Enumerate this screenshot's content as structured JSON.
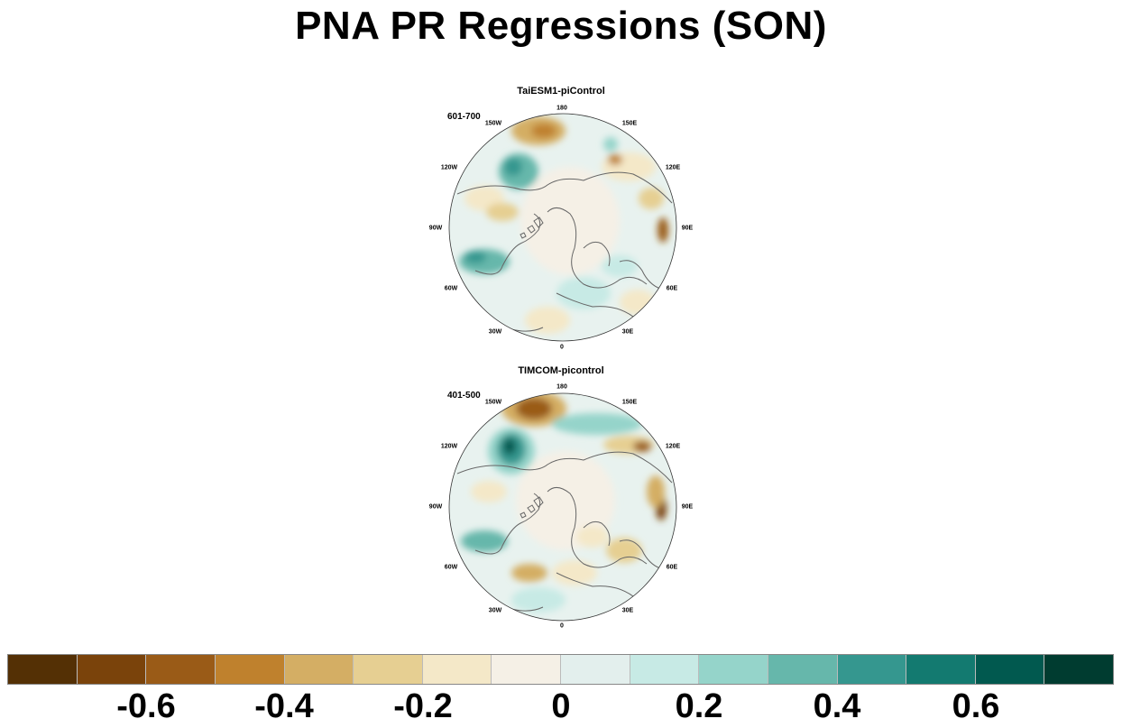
{
  "title": "PNA PR Regressions (SON)",
  "panels": [
    {
      "title": "TaiESM1-piControl",
      "period": "601-700"
    },
    {
      "title": "TIMCOM-picontrol",
      "period": "401-500"
    }
  ],
  "longitude_labels": {
    "lon_180": "180",
    "lon_150E": "150E",
    "lon_120E": "120E",
    "lon_90E": "90E",
    "lon_60E": "60E",
    "lon_30E": "30E",
    "lon_0": "0",
    "lon_30W": "30W",
    "lon_60W": "60W",
    "lon_90W": "90W",
    "lon_120W": "120W",
    "lon_150W": "150W"
  },
  "colorbar": {
    "colors": [
      "#543005",
      "#7a430b",
      "#9a5b17",
      "#bf812d",
      "#d4ae64",
      "#e6cf92",
      "#f4e8c8",
      "#f5f0e6",
      "#e3efed",
      "#c7eae5",
      "#95d4ca",
      "#66b7ab",
      "#35978f",
      "#137a70",
      "#01594f",
      "#003c30"
    ],
    "tick_labels": [
      "-0.6",
      "-0.4",
      "-0.2",
      "0",
      "0.2",
      "0.4",
      "0.6"
    ]
  }
}
